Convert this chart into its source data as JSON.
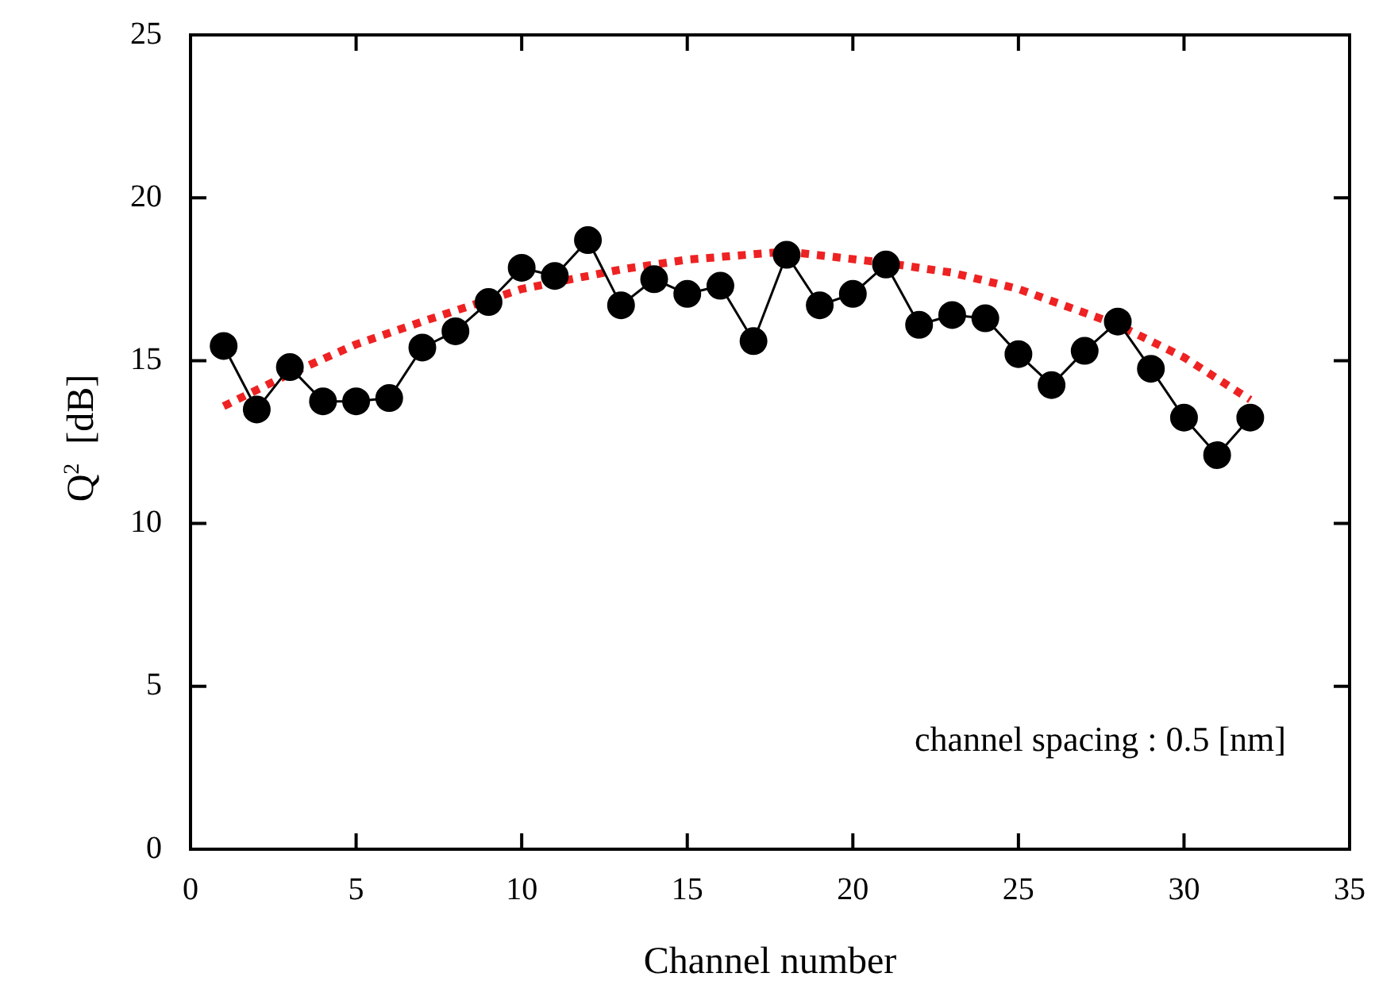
{
  "chart_data": {
    "type": "line",
    "xlabel": "Channel number",
    "ylabel": "Q$^{2}$  [dB]",
    "xlim": [
      0,
      35
    ],
    "xticks": [
      0,
      5,
      10,
      15,
      20,
      25,
      30,
      35
    ],
    "ylim": [
      0,
      25
    ],
    "yticks": [
      0,
      5,
      10,
      15,
      20,
      25
    ],
    "grid": false,
    "legend": false,
    "annotations": [
      "channel spacing : 0.5 [nm]"
    ],
    "series": [
      {
        "type": "line",
        "color": "#000000",
        "marker": "circle",
        "line_style": "solid",
        "x": [
          1,
          2,
          3,
          4,
          5,
          6,
          7,
          8,
          9,
          10,
          11,
          12,
          13,
          14,
          15,
          16,
          17,
          18,
          19,
          20,
          21,
          22,
          23,
          24,
          25,
          26,
          27,
          28,
          29,
          30,
          31,
          32
        ],
        "values": [
          15.45,
          13.5,
          14.8,
          13.75,
          13.75,
          13.85,
          15.4,
          15.9,
          16.8,
          17.85,
          17.6,
          18.7,
          16.7,
          17.5,
          17.05,
          17.3,
          15.6,
          18.25,
          16.7,
          17.05,
          17.95,
          16.1,
          16.4,
          16.3,
          15.2,
          14.25,
          15.3,
          16.2,
          14.75,
          13.25,
          12.1,
          13.25
        ]
      },
      {
        "type": "line",
        "color": "#ee2222",
        "marker": "none",
        "line_style": "dotted",
        "x": [
          1,
          3,
          5,
          7,
          10,
          13,
          15,
          18,
          21,
          23,
          25,
          28,
          30,
          32
        ],
        "values": [
          13.6,
          14.6,
          15.5,
          16.2,
          17.2,
          17.8,
          18.1,
          18.35,
          18.0,
          17.7,
          17.2,
          16.1,
          15.1,
          13.8
        ]
      }
    ]
  }
}
